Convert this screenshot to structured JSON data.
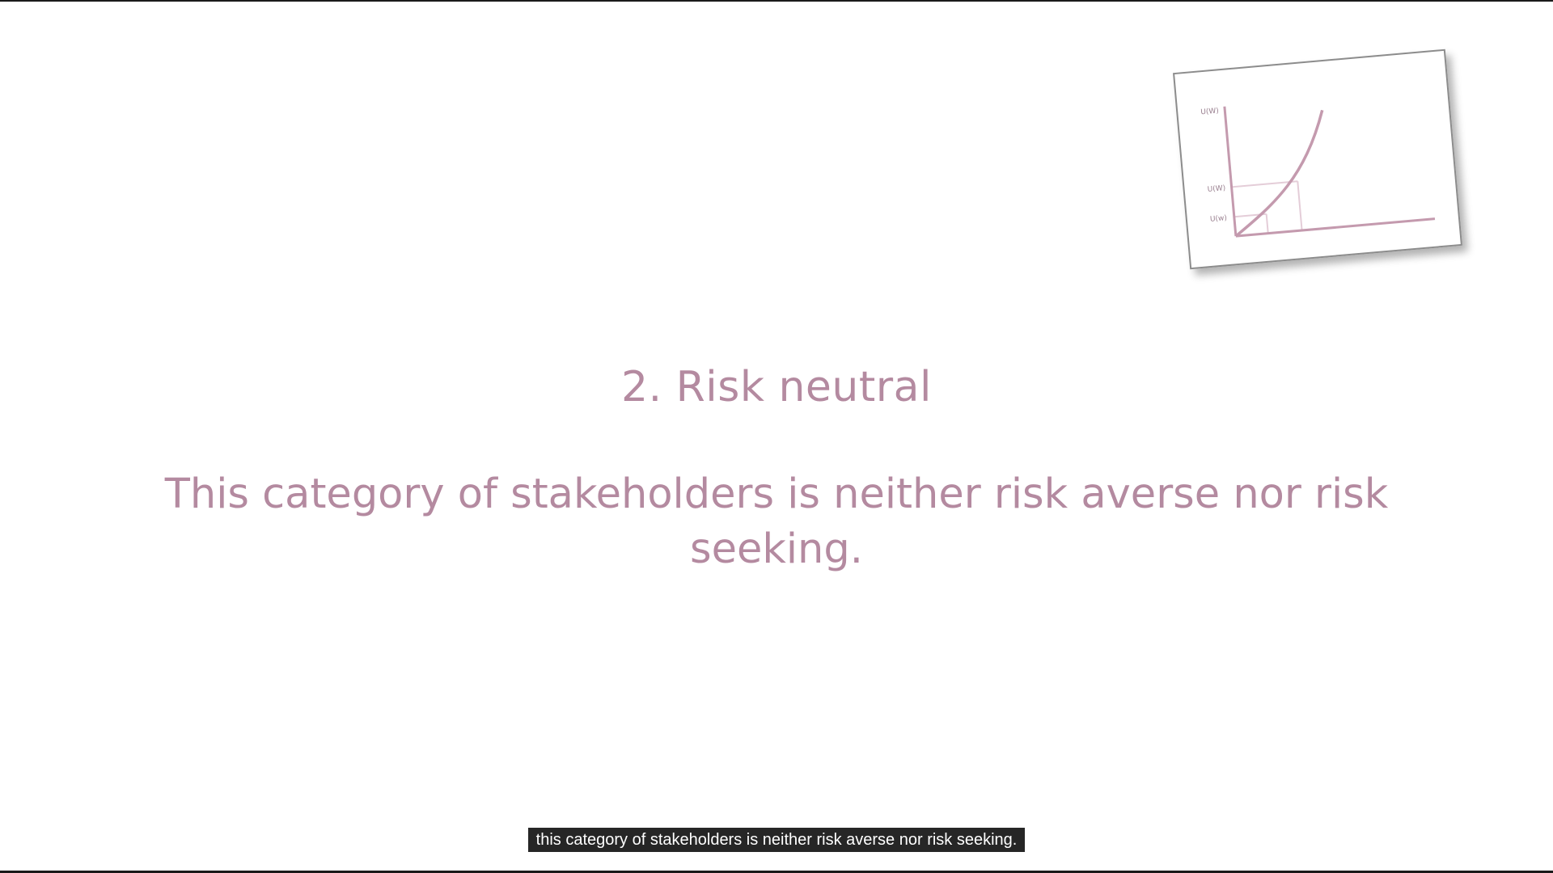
{
  "slide": {
    "title": "2. Risk neutral",
    "body": "This category of stakeholders is neither risk averse nor risk seeking."
  },
  "thumbnail": {
    "icon": "utility-curve-chart-icon",
    "labels": [
      "U(W)",
      "U(W)",
      "U(w)"
    ]
  },
  "caption": {
    "text": "this category of stakeholders is neither risk averse nor risk seeking."
  },
  "colors": {
    "accent": "#b48aa0",
    "curve": "#c49aae",
    "grid": "#e4cdd8",
    "bar": "#1a1a1a",
    "caption_bg": "#262626"
  }
}
